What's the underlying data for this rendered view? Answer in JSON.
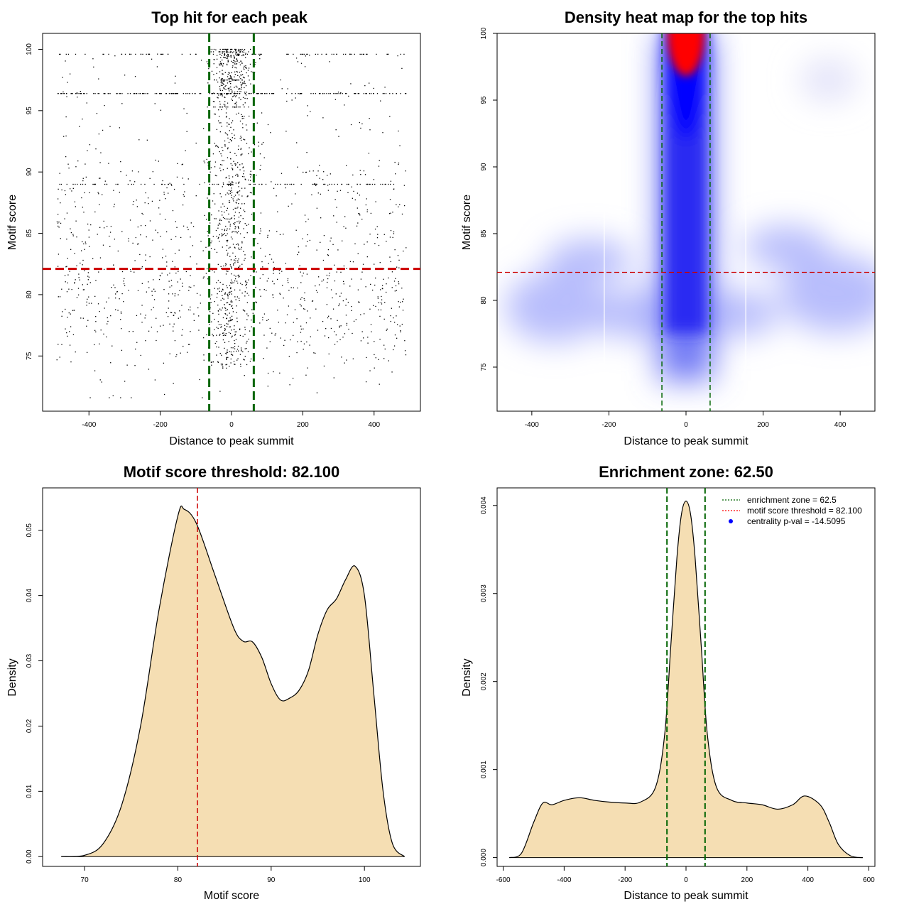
{
  "chart_data": [
    {
      "type": "scatter",
      "title": "Top hit for each peak",
      "xlabel": "Distance to peak summit",
      "ylabel": "Motif score",
      "xlim": [
        -530,
        530
      ],
      "ylim": [
        70.5,
        101.3
      ],
      "xticks": [
        -400,
        -200,
        0,
        200,
        400
      ],
      "yticks": [
        75,
        80,
        85,
        90,
        95,
        100
      ],
      "enrichment_lines_x": [
        -62.5,
        62.5
      ],
      "threshold_line_y": 82.1,
      "colors": {
        "points": "#000000",
        "enrichment": "#006400",
        "threshold": "#cc0000"
      },
      "note_points": "approximately 2400 points; dense band centred on 0 within the enrichment zone, sparse elsewhere"
    },
    {
      "type": "heatmap",
      "title": "Density heat map for the top hits",
      "xlabel": "Distance to peak summit",
      "ylabel": "Motif score",
      "xlim": [
        -490,
        490
      ],
      "ylim": [
        71.7,
        100
      ],
      "xticks": [
        -400,
        -200,
        0,
        200,
        400
      ],
      "yticks": [
        75,
        80,
        85,
        90,
        95,
        100
      ],
      "enrichment_lines_x": [
        -62.5,
        62.5
      ],
      "threshold_line_y": 82.1,
      "colormap": [
        "#ffffff",
        "#0000ff",
        "#ff0000"
      ],
      "peak": {
        "x": 0,
        "y": 100
      }
    },
    {
      "type": "area",
      "title": "Motif score threshold: 82.100",
      "xlabel": "Motif score",
      "ylabel": "Density",
      "xlim": [
        65.5,
        106
      ],
      "ylim": [
        -0.0015,
        0.0565
      ],
      "xticks": [
        70,
        80,
        90,
        100
      ],
      "yticks": [
        0.0,
        0.01,
        0.02,
        0.03,
        0.04,
        0.05
      ],
      "ytick_labels": [
        "0.00",
        "0.01",
        "0.02",
        "0.03",
        "0.04",
        "0.05"
      ],
      "threshold_line_x": 82.1,
      "fill": "#f5deb3",
      "x": [
        67.5,
        70,
        72,
        74,
        76,
        78,
        80,
        80.7,
        82,
        84,
        86,
        87,
        88,
        89,
        90,
        91,
        92,
        93,
        94,
        95,
        96,
        97,
        98,
        99,
        100,
        101,
        102,
        103,
        104.3
      ],
      "y": [
        0,
        0.0002,
        0.002,
        0.008,
        0.02,
        0.038,
        0.0522,
        0.0532,
        0.051,
        0.043,
        0.035,
        0.033,
        0.0329,
        0.0305,
        0.0265,
        0.024,
        0.0243,
        0.0255,
        0.0285,
        0.034,
        0.0378,
        0.0395,
        0.0425,
        0.0445,
        0.04,
        0.025,
        0.01,
        0.002,
        0
      ]
    },
    {
      "type": "area",
      "title": "Enrichment zone: 62.50",
      "xlabel": "Distance to peak summit",
      "ylabel": "Density",
      "xlim": [
        -620,
        620
      ],
      "ylim": [
        -0.0001,
        0.0042
      ],
      "xticks": [
        -600,
        -400,
        -200,
        0,
        200,
        400,
        600
      ],
      "yticks": [
        0.0,
        0.001,
        0.002,
        0.003,
        0.004
      ],
      "ytick_labels": [
        "0.000",
        "0.001",
        "0.002",
        "0.003",
        "0.004"
      ],
      "enrichment_lines_x": [
        -62.5,
        62.5
      ],
      "fill": "#f5deb3",
      "x": [
        -580,
        -540,
        -500,
        -470,
        -440,
        -400,
        -350,
        -300,
        -250,
        -200,
        -150,
        -100,
        -70,
        -50,
        -30,
        -15,
        0,
        15,
        30,
        50,
        70,
        100,
        150,
        200,
        250,
        300,
        350,
        390,
        440,
        470,
        500,
        540,
        580
      ],
      "y": [
        0,
        5e-05,
        0.0004,
        0.00062,
        0.0006,
        0.00065,
        0.00068,
        0.00065,
        0.00063,
        0.00062,
        0.00063,
        0.0008,
        0.0014,
        0.0024,
        0.0034,
        0.0039,
        0.00405,
        0.0039,
        0.0034,
        0.0024,
        0.0014,
        0.0008,
        0.00065,
        0.00062,
        0.0006,
        0.00055,
        0.0006,
        0.0007,
        0.0006,
        0.0004,
        0.00015,
        2e-05,
        0
      ],
      "legend": [
        {
          "label": "enrichment zone = 62.5",
          "color": "#006400",
          "style": "dotted-line"
        },
        {
          "label": "motif score threshold = 82.100",
          "color": "#ff0000",
          "style": "dotted-line"
        },
        {
          "label": "centrality p-val = -14.5095",
          "color": "#0000ff",
          "style": "dot"
        }
      ],
      "legend_position": "top-right"
    }
  ]
}
